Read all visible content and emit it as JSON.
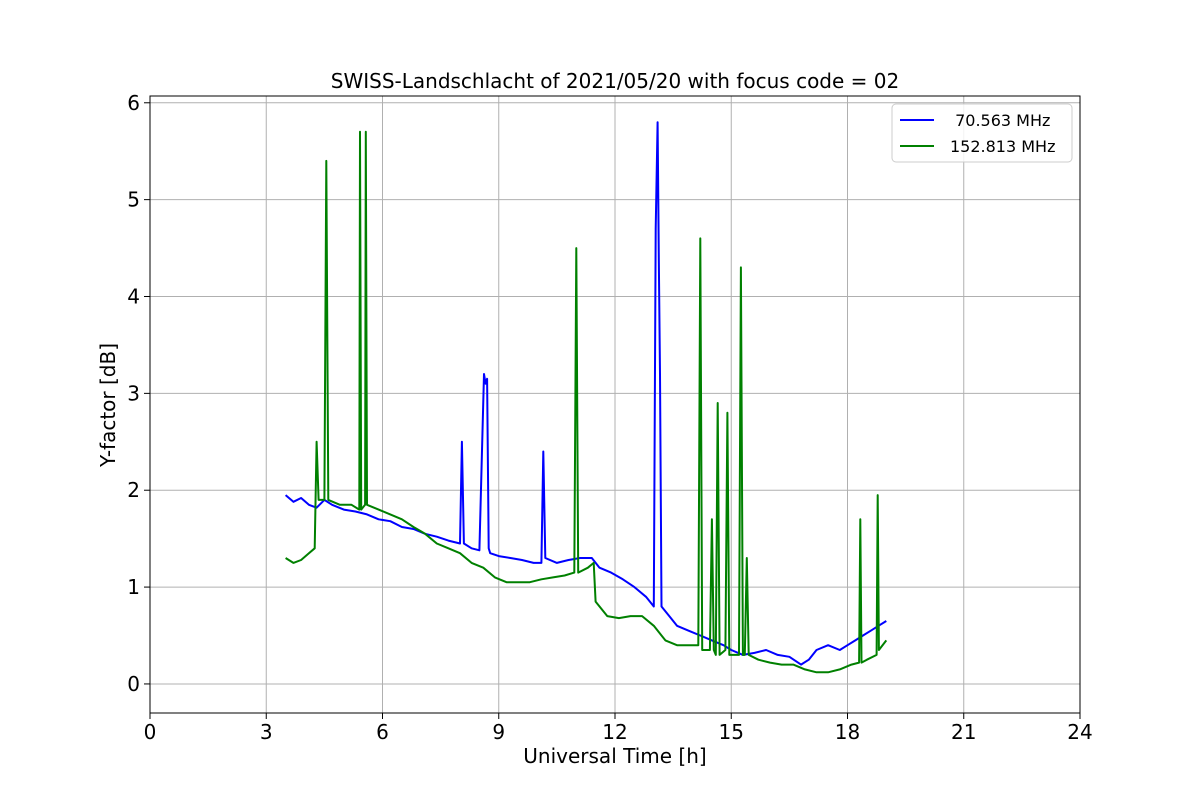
{
  "chart_data": {
    "type": "line",
    "title": "SWISS-Landschlacht of 2021/05/20 with focus code = 02",
    "xlabel": "Universal Time [h]",
    "ylabel": "Y-factor [dB]",
    "xlim": [
      0,
      24
    ],
    "ylim": [
      -0.3,
      6.07
    ],
    "xticks": [
      0,
      3,
      6,
      9,
      12,
      15,
      18,
      21,
      24
    ],
    "yticks": [
      0,
      1,
      2,
      3,
      4,
      5,
      6
    ],
    "grid": true,
    "legend_position": "top-right",
    "series": [
      {
        "name": " 70.563 MHz",
        "color": "#0000ff",
        "x": [
          3.5,
          3.7,
          3.9,
          4.1,
          4.3,
          4.5,
          4.7,
          5.0,
          5.3,
          5.6,
          5.9,
          6.2,
          6.5,
          6.8,
          7.1,
          7.4,
          7.7,
          8.0,
          8.05,
          8.1,
          8.3,
          8.5,
          8.62,
          8.66,
          8.7,
          8.74,
          8.78,
          9.0,
          9.3,
          9.6,
          9.9,
          10.1,
          10.15,
          10.2,
          10.5,
          10.8,
          11.1,
          11.4,
          11.6,
          11.9,
          12.2,
          12.5,
          12.8,
          13.0,
          13.05,
          13.1,
          13.13,
          13.16,
          13.2,
          13.4,
          13.6,
          13.9,
          14.2,
          14.5,
          14.8,
          15.0,
          15.3,
          15.6,
          15.9,
          16.2,
          16.5,
          16.8,
          17.0,
          17.2,
          17.5,
          17.8,
          18.0,
          18.2,
          18.4,
          18.6,
          18.8,
          19.0
        ],
        "y": [
          1.95,
          1.88,
          1.92,
          1.85,
          1.82,
          1.9,
          1.85,
          1.8,
          1.78,
          1.75,
          1.7,
          1.68,
          1.62,
          1.6,
          1.55,
          1.52,
          1.48,
          1.45,
          2.5,
          1.45,
          1.4,
          1.38,
          3.2,
          3.1,
          3.15,
          1.4,
          1.35,
          1.32,
          1.3,
          1.28,
          1.25,
          1.25,
          2.4,
          1.3,
          1.25,
          1.28,
          1.3,
          1.3,
          1.2,
          1.15,
          1.08,
          1.0,
          0.9,
          0.8,
          4.7,
          5.8,
          4.4,
          3.2,
          0.8,
          0.7,
          0.6,
          0.55,
          0.5,
          0.45,
          0.4,
          0.35,
          0.3,
          0.32,
          0.35,
          0.3,
          0.28,
          0.2,
          0.25,
          0.35,
          0.4,
          0.35,
          0.4,
          0.45,
          0.5,
          0.55,
          0.6,
          0.65
        ]
      },
      {
        "name": "152.813 MHz",
        "color": "#008000",
        "x": [
          3.5,
          3.7,
          3.9,
          4.1,
          4.25,
          4.3,
          4.35,
          4.5,
          4.55,
          4.6,
          4.9,
          5.2,
          5.4,
          5.42,
          5.45,
          5.55,
          5.57,
          5.6,
          5.9,
          6.2,
          6.5,
          6.8,
          7.1,
          7.4,
          7.7,
          8.0,
          8.3,
          8.6,
          8.9,
          9.2,
          9.5,
          9.8,
          10.1,
          10.4,
          10.7,
          10.95,
          11.0,
          11.05,
          11.3,
          11.45,
          11.5,
          11.8,
          12.1,
          12.4,
          12.7,
          13.0,
          13.3,
          13.6,
          13.9,
          14.15,
          14.2,
          14.25,
          14.45,
          14.5,
          14.55,
          14.6,
          14.65,
          14.7,
          14.85,
          14.9,
          14.95,
          15.2,
          15.25,
          15.3,
          15.35,
          15.4,
          15.45,
          15.7,
          16.0,
          16.3,
          16.6,
          16.9,
          17.2,
          17.5,
          17.8,
          18.1,
          18.3,
          18.33,
          18.36,
          18.5,
          18.75,
          18.78,
          18.81,
          19.0
        ],
        "y": [
          1.3,
          1.25,
          1.28,
          1.35,
          1.4,
          2.5,
          1.9,
          1.9,
          5.4,
          1.9,
          1.85,
          1.85,
          1.8,
          5.7,
          1.8,
          1.85,
          5.7,
          1.85,
          1.8,
          1.75,
          1.7,
          1.62,
          1.55,
          1.45,
          1.4,
          1.35,
          1.25,
          1.2,
          1.1,
          1.05,
          1.05,
          1.05,
          1.08,
          1.1,
          1.12,
          1.15,
          4.5,
          1.15,
          1.2,
          1.25,
          0.85,
          0.7,
          0.68,
          0.7,
          0.7,
          0.6,
          0.45,
          0.4,
          0.4,
          0.4,
          4.6,
          0.35,
          0.35,
          1.7,
          0.35,
          0.3,
          2.9,
          0.3,
          0.35,
          2.8,
          0.3,
          0.3,
          4.3,
          0.3,
          0.3,
          1.3,
          0.3,
          0.25,
          0.22,
          0.2,
          0.2,
          0.15,
          0.12,
          0.12,
          0.15,
          0.2,
          0.22,
          1.7,
          0.22,
          0.25,
          0.3,
          1.95,
          0.35,
          0.45
        ]
      }
    ]
  }
}
